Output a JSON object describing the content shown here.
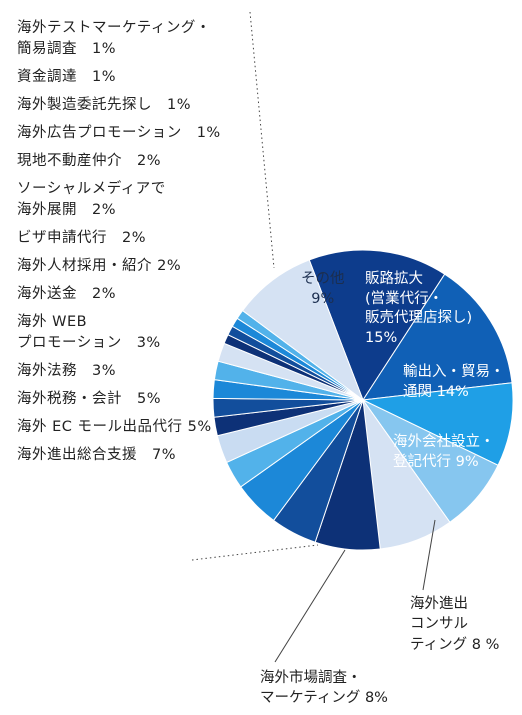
{
  "chart_data": {
    "type": "pie",
    "title": "",
    "slices": [
      {
        "label": "販路拡大\n(営業代行・\n販売代理店探し)\n15%",
        "value": 15,
        "color": "#0d3c8c",
        "text_color": "#ffffff"
      },
      {
        "label": "輸出入・貿易・\n通関 14%",
        "value": 14,
        "color": "#1060b6",
        "text_color": "#ffffff"
      },
      {
        "label": "海外会社設立・\n登記代行 9%",
        "value": 9,
        "color": "#1f9fe6",
        "text_color": "#ffffff"
      },
      {
        "label": "海外進出\nコンサル\nティング 8 %",
        "value": 8,
        "color": "#86c6ef"
      },
      {
        "label": "海外市場調査・\nマーケティング 8%",
        "value": 8,
        "color": "#d5e2f3"
      },
      {
        "label": "海外進出総合支援 7%",
        "value": 7,
        "color": "#0d3177"
      },
      {
        "label": "海外 EC モール出品代行 5%",
        "value": 5,
        "color": "#124e9c"
      },
      {
        "label": "海外税務・会計 5%",
        "value": 5,
        "color": "#1c88d8"
      },
      {
        "label": "海外法務 3%",
        "value": 3,
        "color": "#52b2ea"
      },
      {
        "label": "海外 WEB プロモーション 3%",
        "value": 3,
        "color": "#c9dcf2"
      },
      {
        "label": "海外送金 2%",
        "value": 2,
        "color": "#0d3177"
      },
      {
        "label": "人材採用・紹介 2%",
        "value": 2,
        "color": "#124e9c"
      },
      {
        "label": "ビザ申請代行 2%",
        "value": 2,
        "color": "#1c88d8"
      },
      {
        "label": "ソーシャルメディアで海外展開 2%",
        "value": 2,
        "color": "#52b2ea"
      },
      {
        "label": "現地不動産仲介 2%",
        "value": 2,
        "color": "#d5e2f3"
      },
      {
        "label": "海外広告プロモーション 1%",
        "value": 1,
        "color": "#0d3177"
      },
      {
        "label": "海外製造委託先探し 1%",
        "value": 1,
        "color": "#124e9c"
      },
      {
        "label": "資金調達 1%",
        "value": 1,
        "color": "#1c88d8"
      },
      {
        "label": "海外テストマーケティング・簡易調査 1%",
        "value": 1,
        "color": "#52b2ea"
      },
      {
        "label": "その他\n9%",
        "value": 9,
        "color": "#d5e2f3"
      }
    ],
    "legend_items": [
      "海外テストマーケティング・\n簡易調査　1%",
      "資金調達　1%",
      "海外製造委託先探し　1%",
      "海外広告プロモーション　1%",
      "現地不動産仲介　2%",
      "ソーシャルメディアで\n海外展開　2%",
      "ビザ申請代行　2%",
      "海外人材採用・紹介 2%",
      "海外送金　2%",
      "海外 WEB\nプロモーション　3%",
      "海外法務　3%",
      "海外税務・会計　5%",
      "海外 EC モール出品代行 5%",
      "海外進出総合支援　7%"
    ]
  }
}
